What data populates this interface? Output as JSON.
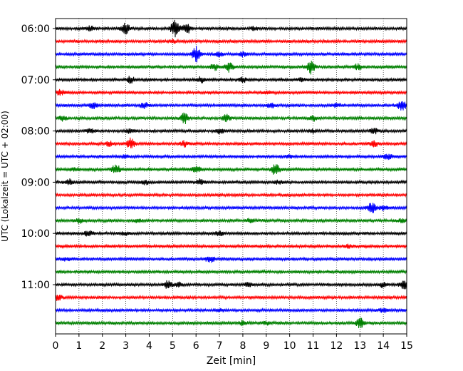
{
  "chart_data": {
    "type": "line",
    "title": "",
    "xlabel": "Zeit  [min]",
    "ylabel": "UTC (Lokalzeit = UTC + 02:00)",
    "xlim": [
      0,
      15
    ],
    "x_ticks": [
      0,
      1,
      2,
      3,
      4,
      5,
      6,
      7,
      8,
      9,
      10,
      11,
      12,
      13,
      14,
      15
    ],
    "y_tick_labels": [
      "06:00",
      "07:00",
      "08:00",
      "09:00",
      "10:00",
      "11:00"
    ],
    "grid": "vertical-dotted",
    "traces_per_hour": 4,
    "trace_colors": [
      "#000000",
      "#ff0000",
      "#0000ff",
      "#008000"
    ],
    "series": [
      {
        "start": "06:00",
        "color": "#000000",
        "events": [
          [
            3.0,
            1.0
          ],
          [
            5.1,
            1.6
          ],
          [
            5.6,
            1.0
          ],
          [
            1.5,
            0.4
          ],
          [
            8.5,
            0.3
          ]
        ]
      },
      {
        "start": "06:15",
        "color": "#ff0000",
        "events": [
          [
            5.0,
            0.3
          ]
        ]
      },
      {
        "start": "06:30",
        "color": "#0000ff",
        "events": [
          [
            6.0,
            1.5
          ],
          [
            7.0,
            0.4
          ],
          [
            8.0,
            0.4
          ]
        ]
      },
      {
        "start": "06:45",
        "color": "#008000",
        "events": [
          [
            7.4,
            1.0
          ],
          [
            6.8,
            0.6
          ],
          [
            10.9,
            1.3
          ],
          [
            12.9,
            0.5
          ]
        ]
      },
      {
        "start": "07:00",
        "color": "#000000",
        "events": [
          [
            3.2,
            0.6
          ],
          [
            6.2,
            0.5
          ],
          [
            8.0,
            0.4
          ],
          [
            10.5,
            0.3
          ]
        ]
      },
      {
        "start": "07:15",
        "color": "#ff0000",
        "events": [
          [
            0.2,
            0.5
          ],
          [
            9.0,
            0.3
          ]
        ]
      },
      {
        "start": "07:30",
        "color": "#0000ff",
        "events": [
          [
            1.6,
            0.6
          ],
          [
            3.8,
            0.5
          ],
          [
            9.2,
            0.4
          ],
          [
            14.8,
            1.0
          ],
          [
            12.0,
            0.4
          ]
        ]
      },
      {
        "start": "07:45",
        "color": "#008000",
        "events": [
          [
            5.5,
            1.0
          ],
          [
            7.3,
            0.6
          ],
          [
            11.0,
            0.5
          ],
          [
            0.3,
            0.4
          ]
        ]
      },
      {
        "start": "08:00",
        "color": "#000000",
        "events": [
          [
            1.5,
            0.5
          ],
          [
            3.2,
            0.4
          ],
          [
            7.0,
            0.5
          ],
          [
            13.6,
            0.5
          ],
          [
            11.0,
            0.3
          ]
        ]
      },
      {
        "start": "08:15",
        "color": "#ff0000",
        "events": [
          [
            3.2,
            1.0
          ],
          [
            5.5,
            0.5
          ],
          [
            2.3,
            0.4
          ],
          [
            13.6,
            0.5
          ]
        ]
      },
      {
        "start": "08:30",
        "color": "#0000ff",
        "events": [
          [
            14.2,
            0.5
          ],
          [
            3.0,
            0.3
          ],
          [
            10.0,
            0.3
          ]
        ]
      },
      {
        "start": "08:45",
        "color": "#008000",
        "events": [
          [
            2.6,
            1.0
          ],
          [
            6.0,
            0.7
          ],
          [
            9.4,
            1.2
          ],
          [
            0.8,
            0.3
          ]
        ]
      },
      {
        "start": "09:00",
        "color": "#000000",
        "events": [
          [
            0.6,
            0.5
          ],
          [
            3.8,
            0.5
          ],
          [
            6.2,
            0.5
          ],
          [
            9.5,
            0.3
          ]
        ]
      },
      {
        "start": "09:15",
        "color": "#ff0000",
        "events": []
      },
      {
        "start": "09:30",
        "color": "#0000ff",
        "events": [
          [
            13.5,
            1.0
          ],
          [
            14.0,
            0.4
          ]
        ]
      },
      {
        "start": "09:45",
        "color": "#008000",
        "events": [
          [
            1.0,
            0.4
          ],
          [
            3.5,
            0.3
          ],
          [
            8.3,
            0.3
          ],
          [
            14.8,
            0.3
          ]
        ]
      },
      {
        "start": "10:00",
        "color": "#000000",
        "events": [
          [
            1.4,
            0.5
          ],
          [
            7.0,
            0.4
          ],
          [
            3.0,
            0.3
          ]
        ]
      },
      {
        "start": "10:15",
        "color": "#ff0000",
        "events": [
          [
            12.5,
            0.3
          ]
        ]
      },
      {
        "start": "10:30",
        "color": "#0000ff",
        "events": [
          [
            6.6,
            0.6
          ],
          [
            0.5,
            0.3
          ]
        ]
      },
      {
        "start": "10:45",
        "color": "#008000",
        "events": []
      },
      {
        "start": "11:00",
        "color": "#000000",
        "events": [
          [
            4.8,
            0.7
          ],
          [
            5.3,
            0.5
          ],
          [
            8.2,
            0.4
          ],
          [
            14.0,
            0.5
          ],
          [
            14.9,
            0.8
          ]
        ]
      },
      {
        "start": "11:15",
        "color": "#ff0000",
        "events": [
          [
            0.1,
            0.5
          ]
        ]
      },
      {
        "start": "11:30",
        "color": "#0000ff",
        "events": [
          [
            14.0,
            0.4
          ],
          [
            7.0,
            0.3
          ]
        ]
      },
      {
        "start": "11:45",
        "color": "#008000",
        "events": [
          [
            13.0,
            1.0
          ],
          [
            8.0,
            0.4
          ],
          [
            9.0,
            0.3
          ]
        ]
      }
    ]
  }
}
